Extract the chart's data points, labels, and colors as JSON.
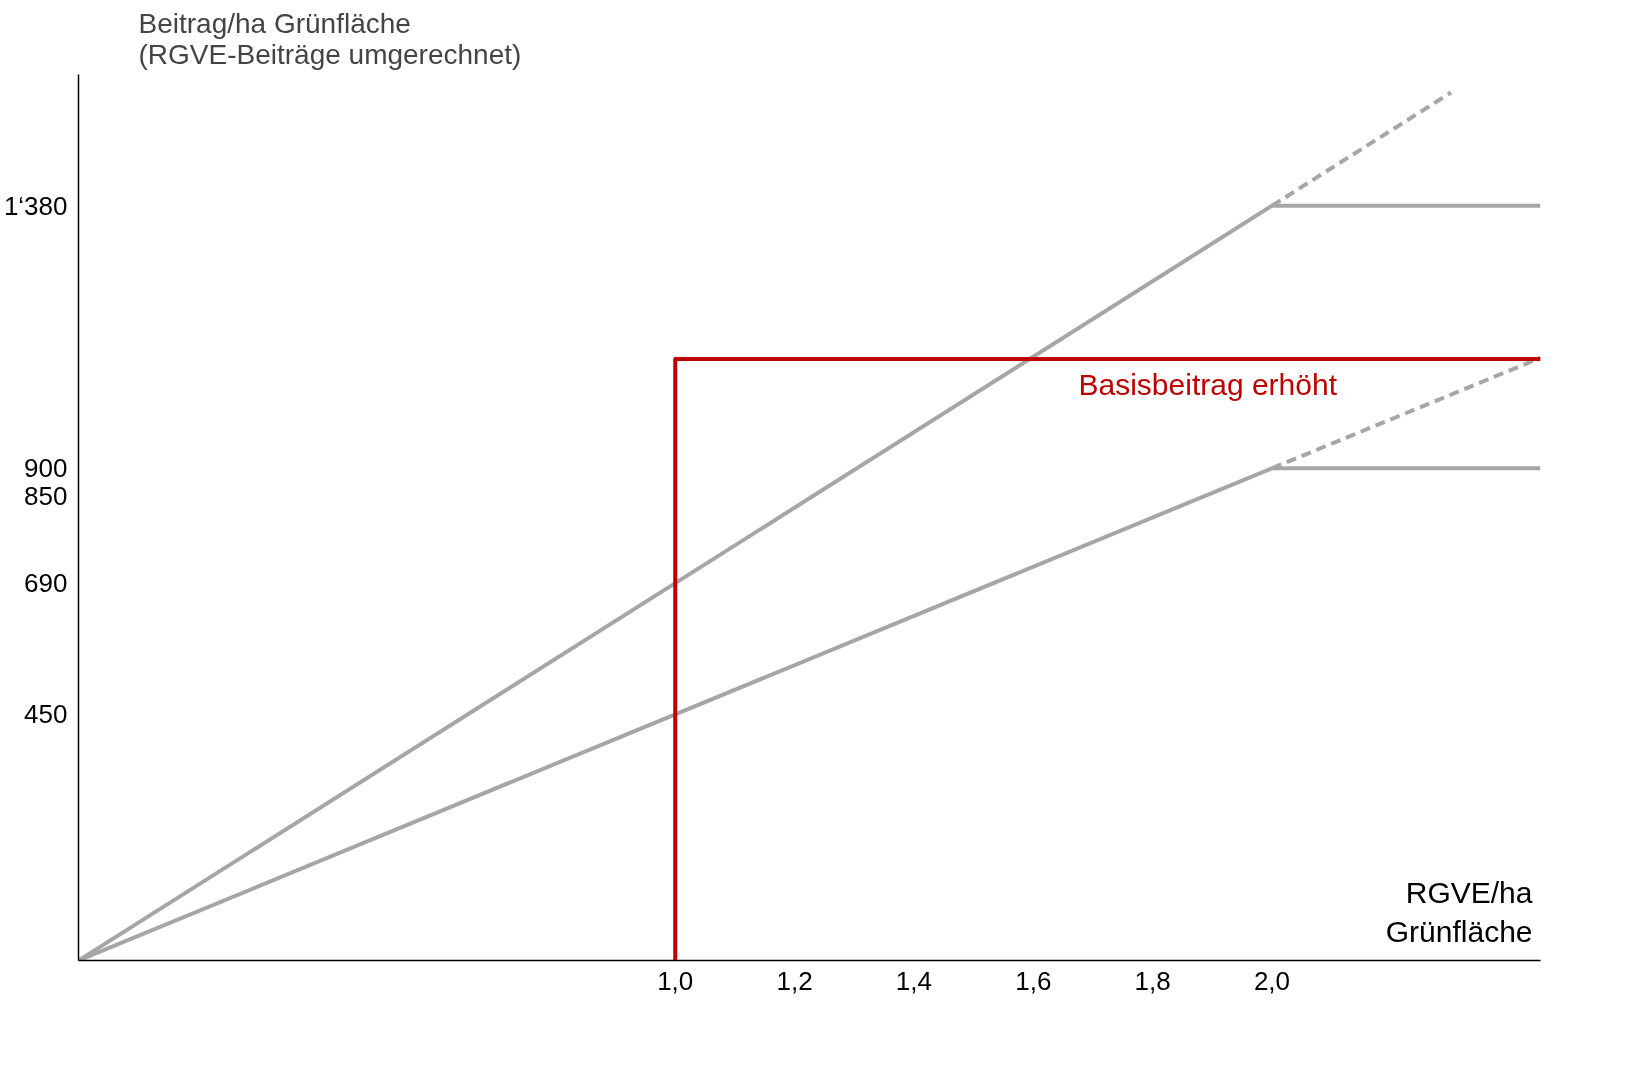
{
  "chart_data": {
    "type": "line",
    "ylabel": "Beitrag/ha Grünfläche\n(RGVE-Beiträge umgerechnet)",
    "xlabel": "RGVE/ha\nGrünfläche",
    "xlim": [
      0,
      2.45
    ],
    "ylim": [
      0,
      1620
    ],
    "xticks": [
      {
        "value": 1.0,
        "label": "1,0"
      },
      {
        "value": 1.2,
        "label": "1,2"
      },
      {
        "value": 1.4,
        "label": "1,4"
      },
      {
        "value": 1.6,
        "label": "1,6"
      },
      {
        "value": 1.8,
        "label": "1,8"
      },
      {
        "value": 2.0,
        "label": "2,0"
      }
    ],
    "yticks": [
      450,
      690,
      850,
      900,
      {
        "value": 1380,
        "label": "1‘380"
      }
    ],
    "grid": false,
    "marker": "none",
    "series": [
      {
        "color": "#a6a6a6",
        "x": [
          0,
          2.0,
          2.45
        ],
        "values": [
          0,
          1380,
          1380
        ],
        "line_style": "solid"
      },
      {
        "color": "#a6a6a6",
        "x": [
          0,
          2.0,
          2.45
        ],
        "values": [
          0,
          900,
          900
        ],
        "line_style": "solid"
      },
      {
        "color": "#a6a6a6",
        "x": [
          2.0,
          2.3
        ],
        "values": [
          1380,
          1587
        ],
        "line_style": "dashed"
      },
      {
        "color": "#a6a6a6",
        "x": [
          2.0,
          2.45
        ],
        "values": [
          900,
          1102
        ],
        "line_style": "dashed"
      },
      {
        "color": "#c00000",
        "x": [
          1.0,
          1.0,
          2.45
        ],
        "values": [
          0,
          1100,
          1100
        ],
        "line_style": "solid"
      }
    ],
    "annotations": [
      "Basisbeitrag erhöht"
    ]
  }
}
